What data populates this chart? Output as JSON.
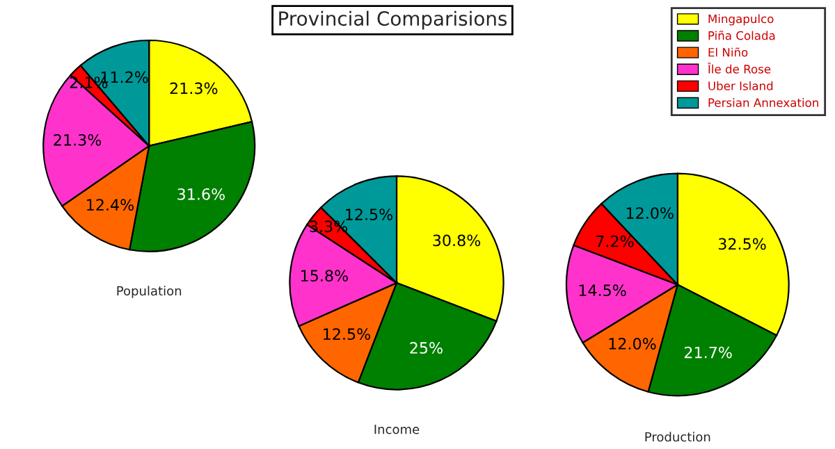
{
  "chart_data": [
    {
      "type": "pie",
      "title": "Provincial Comparisions",
      "xlabel": "Population",
      "legend": "top right",
      "categories": [
        "Mingapulco",
        "Piña Colada",
        "El Niño",
        "Île de Rose",
        "Uber Island",
        "Persian Annexation"
      ],
      "values": [
        21.3,
        31.6,
        12.4,
        21.3,
        2.1,
        11.2
      ],
      "value_labels": [
        "21.3%",
        "31.6%",
        "12.4%",
        "21.3%",
        "2.1%",
        "11.2%"
      ],
      "colors": [
        "#ffff00",
        "#008000",
        "#ff6600",
        "#ff33cc",
        "#ff0000",
        "#009999"
      ]
    },
    {
      "type": "pie",
      "xlabel": "Income",
      "categories": [
        null,
        null,
        null,
        null,
        null,
        null
      ],
      "values": [
        30.8,
        25,
        12.5,
        15.8,
        3.3,
        12.5
      ],
      "value_labels": [
        "30.8%",
        "25%",
        "12.5%",
        "15.8%",
        "3.3%",
        "12.5%"
      ],
      "colors": [
        "#ffff00",
        "#008000",
        "#ff6600",
        "#ff33cc",
        "#ff0000",
        "#009999"
      ]
    },
    {
      "type": "pie",
      "xlabel": "Production",
      "categories": [
        null,
        null,
        null,
        null,
        null,
        null
      ],
      "values": [
        32.5,
        21.7,
        12.0,
        14.5,
        7.2,
        12.0
      ],
      "value_labels": [
        "32.5%",
        "21.7%",
        "12.0%",
        "14.5%",
        "7.2%",
        "12.0%"
      ],
      "colors": [
        "#ffff00",
        "#008000",
        "#ff6600",
        "#ff33cc",
        "#ff0000",
        "#009999"
      ]
    }
  ]
}
